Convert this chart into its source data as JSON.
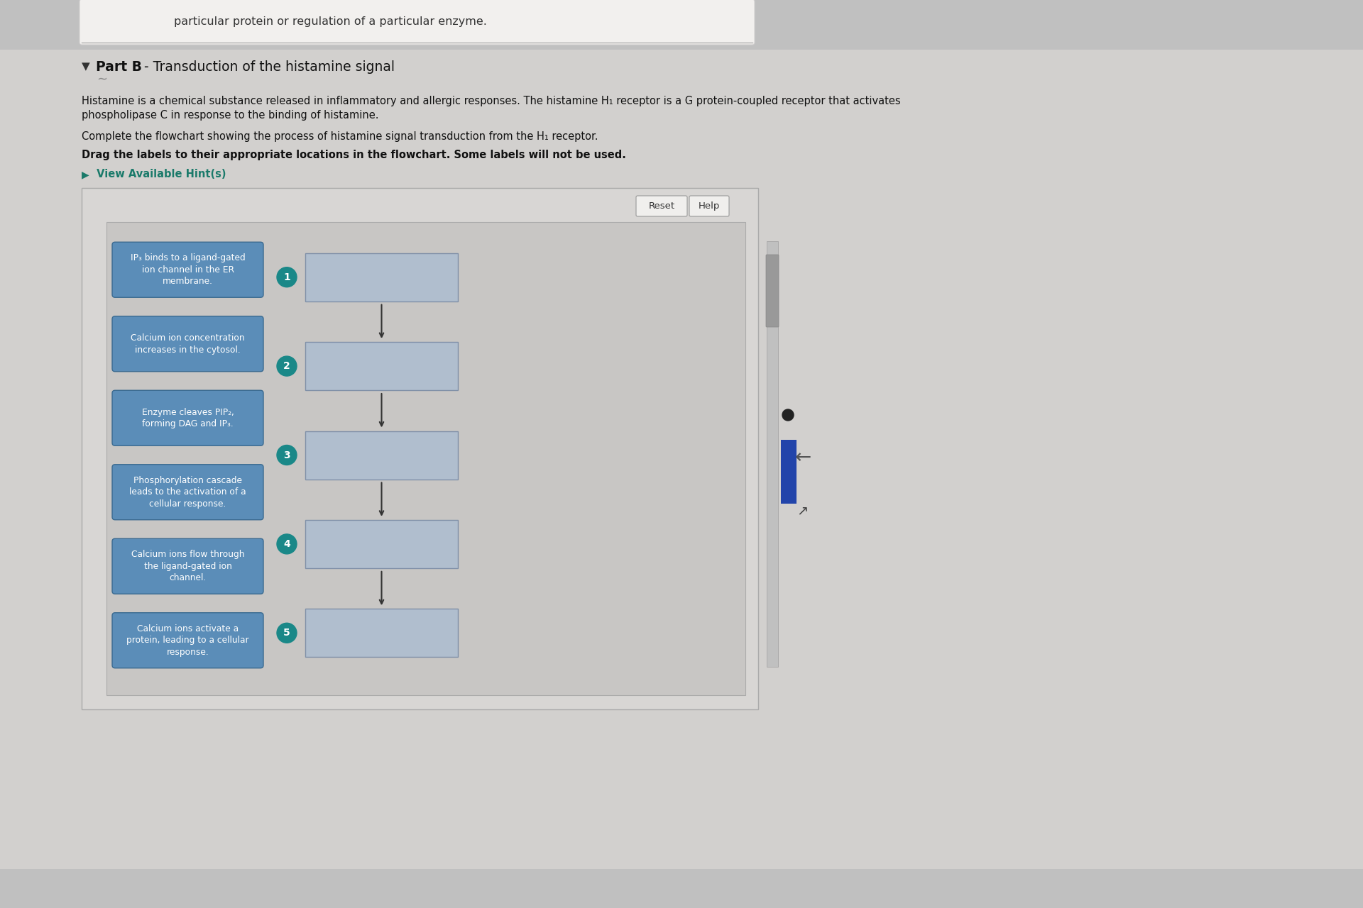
{
  "page_bg": "#c0c0c0",
  "top_bar_bg": "#f0efed",
  "top_bar_text": "particular protein or regulation of a particular enzyme.",
  "section_bg": "#d0cece",
  "title_arrow": "▼",
  "title_bold": "Part B",
  "title_rest": " - Transduction of the histamine signal",
  "wave_text": "∼",
  "desc1": "Histamine is a chemical substance released in inflammatory and allergic responses. The histamine H₁ receptor is a G protein-coupled receptor that activates",
  "desc2": "phospholipase C in response to the binding of histamine.",
  "instr1": "Complete the flowchart showing the process of histamine signal transduction from the H₁ receptor.",
  "instr2a": "Drag the labels to their appropriate locations in the flowchart. ",
  "instr2b": "Some labels will not be used.",
  "hint_arrow": "▶",
  "hint_text": " View Available Hint(s)",
  "hint_color": "#1a7a6a",
  "outer_panel_bg": "#d8d6d4",
  "outer_panel_border": "#aaaaaa",
  "inner_panel_bg": "#c8c6c4",
  "inner_panel_border": "#aaaaaa",
  "reset_btn_text": "Reset",
  "help_btn_text": "Help",
  "btn_bg": "#f0efed",
  "btn_border": "#999999",
  "label_bg": "#5b8db8",
  "label_border": "#3a6a90",
  "label_text_color": "#ffffff",
  "labels": [
    "IP₃ binds to a ligand-gated\nion channel in the ER\nmembrane.",
    "Calcium ion concentration\nincreases in the cytosol.",
    "Enzyme cleaves PIP₂,\nforming DAG and IP₃.",
    "Phosphorylation cascade\nleads to the activation of a\ncellular response.",
    "Calcium ions flow through\nthe ligand-gated ion\nchannel.",
    "Calcium ions activate a\nprotein, leading to a cellular\nresponse."
  ],
  "flow_box_bg": "#b0bece",
  "flow_box_border": "#8090a8",
  "circle_color": "#1a8888",
  "flow_numbers": [
    "1",
    "2",
    "3",
    "4",
    "5"
  ],
  "arrow_color": "#333333",
  "right_edge_dot_color": "#222222",
  "right_blue_tab_color": "#2244aa",
  "scrollbar_color": "#aaaaaa",
  "nav_arrow_color": "#555555"
}
